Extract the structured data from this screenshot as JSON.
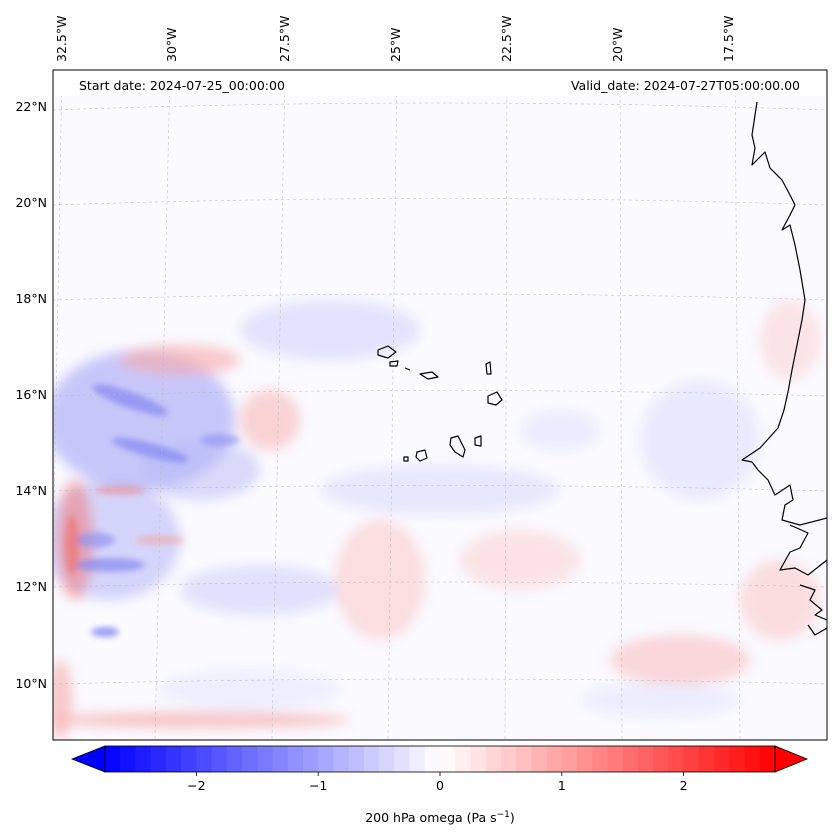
{
  "map": {
    "start_date_label": "Start date: 2024-07-25_00:00:00",
    "valid_date_label": "Valid_date: 2024-07-27T05:00:00.00",
    "lon_labels": [
      "32.5°W",
      "30°W",
      "27.5°W",
      "25°W",
      "22.5°W",
      "20°W",
      "17.5°W"
    ],
    "lat_labels": [
      "22°N",
      "20°N",
      "18°N",
      "16°N",
      "14°N",
      "12°N",
      "10°N"
    ],
    "field": "200 hPa omega",
    "colors": {
      "negative": "#0000ff",
      "positive": "#ff0000",
      "neutral": "#ffffff",
      "coastline": "#000000",
      "gridline": "#b0b0b0"
    }
  },
  "colorbar": {
    "ticks": [
      "−2",
      "−1",
      "0",
      "1",
      "2"
    ],
    "tick_values": [
      -2,
      -1,
      0,
      1,
      2
    ],
    "range": [
      -2.75,
      2.75
    ],
    "label_main": "200 hPa omega (Pa s",
    "label_sup": "−1",
    "label_close": ")",
    "colormap": "bwr"
  }
}
